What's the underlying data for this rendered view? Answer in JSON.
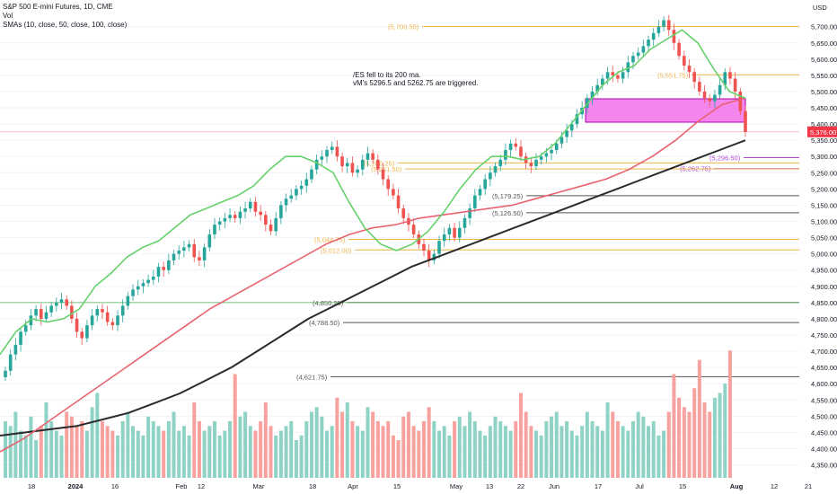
{
  "chart_data": {
    "type": "candlestick",
    "title": "S&P 500 E-mini Futures, 1D, CME",
    "currency": "USD",
    "volume_label": "Vol",
    "sma_label": "SMAs (10, close, 50, close, 100, close)",
    "annotation": [
      "/ES fell to its 200 ma.",
      "vM's 5296.5 and 5262.75 are triggered."
    ],
    "y_ticks": [
      "5,700.00",
      "5,650.00",
      "5,600.00",
      "5,550.00",
      "5,500.00",
      "5,450.00",
      "5,400.00",
      "5,350.00",
      "5,300.00",
      "5,250.00",
      "5,200.00",
      "5,150.00",
      "5,100.00",
      "5,050.00",
      "5,000.00",
      "4,950.00",
      "4,900.00",
      "4,850.00",
      "4,800.00",
      "4,750.00",
      "4,700.00",
      "4,650.00",
      "4,600.00",
      "4,550.00",
      "4,500.00",
      "4,450.00",
      "4,400.00",
      "4,350.00"
    ],
    "x_ticks": [
      "18",
      "2024",
      "16",
      "Feb",
      "12",
      "Mar",
      "18",
      "Apr",
      "15",
      "May",
      "13",
      "22",
      "Jun",
      "17",
      "Jul",
      "15",
      "Aug",
      "12",
      "21"
    ],
    "last_price_label": "5,376.00",
    "ylim": [
      4310,
      5760
    ],
    "levels": [
      {
        "label": "(5,700.50)",
        "value": 5700.5,
        "color": "#f0b44a"
      },
      {
        "label": "(5,551.75)",
        "value": 5551.75,
        "color": "#f0b44a"
      },
      {
        "label": "(5,296.50)",
        "value": 5296.5,
        "color": "#b04bd6"
      },
      {
        "label": "(5,262.75)",
        "value": 5262.75,
        "color": "#b04bd6"
      },
      {
        "label": "(5,280.25)",
        "value": 5280.25,
        "color": "#f0b44a"
      },
      {
        "label": "(5,261.50)",
        "value": 5261.5,
        "color": "#f0b44a"
      },
      {
        "label": "(5,179.25)",
        "value": 5179.25,
        "color": "#555555"
      },
      {
        "label": "(5,126.50)",
        "value": 5126.5,
        "color": "#555555"
      },
      {
        "label": "(5,044.75)",
        "value": 5044.75,
        "color": "#f0b44a"
      },
      {
        "label": "(5,012.00)",
        "value": 5012,
        "color": "#f0b44a"
      },
      {
        "label": "(4,850.25)",
        "value": 4850.25,
        "color": "#555555"
      },
      {
        "label": "(4,788.50)",
        "value": 4788.5,
        "color": "#555555"
      },
      {
        "label": "(4,621.75)",
        "value": 4621.75,
        "color": "#555555"
      }
    ],
    "closes": [
      4640,
      4690,
      4720,
      4760,
      4780,
      4810,
      4830,
      4800,
      4820,
      4840,
      4850,
      4860,
      4840,
      4800,
      4760,
      4740,
      4780,
      4810,
      4830,
      4820,
      4790,
      4780,
      4810,
      4840,
      4870,
      4890,
      4900,
      4910,
      4920,
      4930,
      4960,
      4950,
      4980,
      5000,
      5010,
      5020,
      5030,
      4990,
      4980,
      5020,
      5060,
      5090,
      5100,
      5110,
      5120,
      5110,
      5130,
      5140,
      5160,
      5130,
      5120,
      5090,
      5070,
      5110,
      5150,
      5170,
      5180,
      5200,
      5210,
      5230,
      5260,
      5290,
      5300,
      5320,
      5330,
      5300,
      5270,
      5280,
      5250,
      5260,
      5290,
      5310,
      5290,
      5260,
      5230,
      5200,
      5180,
      5140,
      5110,
      5090,
      5060,
      5030,
      5010,
      4980,
      5000,
      5040,
      5060,
      5080,
      5050,
      5080,
      5110,
      5140,
      5180,
      5200,
      5230,
      5250,
      5270,
      5290,
      5320,
      5340,
      5330,
      5300,
      5280,
      5270,
      5290,
      5300,
      5310,
      5320,
      5340,
      5360,
      5380,
      5400,
      5430,
      5450,
      5480,
      5500,
      5520,
      5540,
      5560,
      5550,
      5540,
      5560,
      5590,
      5610,
      5620,
      5640,
      5660,
      5680,
      5700,
      5720,
      5690,
      5650,
      5610,
      5580,
      5560,
      5530,
      5500,
      5480,
      5470,
      5490,
      5520,
      5560,
      5540,
      5500,
      5440,
      5376
    ],
    "sma10_samples": [
      4690,
      4760,
      4800,
      4790,
      4800,
      4830,
      4900,
      4940,
      4990,
      5020,
      5040,
      5080,
      5120,
      5140,
      5160,
      5180,
      5210,
      5260,
      5300,
      5300,
      5280,
      5250,
      5160,
      5080,
      5030,
      5010,
      5030,
      5070,
      5130,
      5200,
      5260,
      5300,
      5300,
      5290,
      5300,
      5340,
      5400,
      5460,
      5520,
      5560,
      5580,
      5630,
      5660,
      5690,
      5650,
      5570,
      5500,
      5480
    ],
    "sma50_samples": [
      4390,
      4430,
      4480,
      4530,
      4580,
      4630,
      4680,
      4730,
      4780,
      4830,
      4870,
      4910,
      4950,
      4990,
      5030,
      5060,
      5080,
      5090,
      5110,
      5120,
      5130,
      5140,
      5150,
      5170,
      5190,
      5210,
      5230,
      5260,
      5300,
      5350,
      5410,
      5460,
      5480
    ],
    "sma100_samples": [
      4440,
      4450,
      4460,
      4470,
      4490,
      4510,
      4540,
      4570,
      4610,
      4650,
      4700,
      4750,
      4800,
      4840,
      4880,
      4920,
      4960,
      4990,
      5020,
      5050,
      5080,
      5110,
      5140,
      5170,
      5200,
      5230,
      5260,
      5290,
      5320,
      5350
    ],
    "volume_values": [
      60,
      55,
      70,
      50,
      45,
      65,
      40,
      55,
      80,
      60,
      50,
      45,
      70,
      65,
      55,
      60,
      50,
      75,
      90,
      60,
      55,
      50,
      45,
      60,
      70,
      55,
      50,
      45,
      65,
      60,
      55,
      50,
      60,
      70,
      50,
      55,
      45,
      80,
      60,
      50,
      55,
      60,
      45,
      50,
      60,
      110,
      65,
      70,
      55,
      50,
      60,
      80,
      55,
      45,
      50,
      55,
      60,
      40,
      45,
      60,
      70,
      75,
      65,
      50,
      55,
      85,
      70,
      80,
      60,
      55,
      50,
      75,
      70,
      60,
      55,
      60,
      45,
      40,
      65,
      70,
      55,
      50,
      60,
      75,
      60,
      50,
      55,
      45,
      60,
      65,
      55,
      70,
      60,
      50,
      45,
      55,
      65,
      60,
      55,
      50,
      60,
      90,
      70,
      55,
      50,
      45,
      60,
      65,
      70,
      55,
      60,
      50,
      45,
      55,
      70,
      60,
      55,
      50,
      80,
      70,
      60,
      55,
      50,
      60,
      70,
      65,
      55,
      60,
      45,
      50,
      70,
      110,
      85,
      75,
      70,
      95,
      125,
      80,
      70,
      85,
      90,
      100,
      135
    ]
  }
}
